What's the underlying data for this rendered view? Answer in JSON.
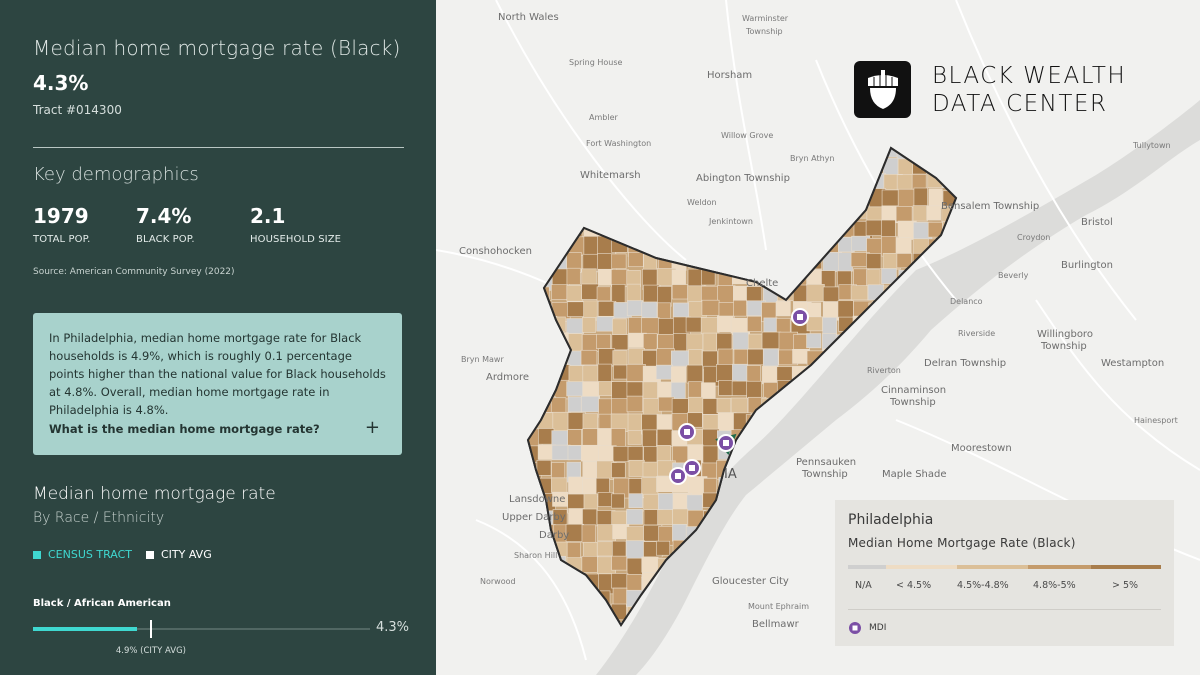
{
  "metric": {
    "title": "Median home mortgage rate (Black)",
    "value": "4.3%",
    "tract": "Tract #014300"
  },
  "demographics": {
    "heading": "Key demographics",
    "stats": [
      {
        "value": "1979",
        "label": "TOTAL POP."
      },
      {
        "value": "7.4%",
        "label": "BLACK POP."
      },
      {
        "value": "2.1",
        "label": "HOUSEHOLD SIZE"
      }
    ],
    "source": "Source: American Community Survey (2022)"
  },
  "info": {
    "text": "In Philadelphia, median home mortgage rate for Black households is 4.9%, which is roughly 0.1 percentage points higher than the national value for Black households at 4.8%. Overall, median home mortgage rate in Philadelphia is 4.8%.",
    "question": "What is the median home mortgage rate?",
    "toggle_icon": "plus-icon"
  },
  "race_chart": {
    "title": "Median home mortgage rate",
    "subtitle": "By Race / Ethnicity",
    "legend": {
      "tract": "CENSUS TRACT",
      "city": "CITY AVG"
    },
    "colors": {
      "tract": "#3fd8d0",
      "city": "#ffffff"
    },
    "groups": [
      {
        "label": "Black / African American",
        "tract_value": "4.3%",
        "city_label": "4.9% (CITY AVG)",
        "tract_fraction": 0.31,
        "city_fraction": 0.35
      }
    ]
  },
  "brand": {
    "line1": "BLACK WEALTH",
    "line2": "DATA CENTER",
    "icon": "acorn-icon"
  },
  "map": {
    "places": [
      "North Wales",
      "Warminster",
      "Township",
      "Spring House",
      "Horsham",
      "Ambler",
      "Willow Grove",
      "Fort Washington",
      "Bryn Athyn",
      "Whitemarsh",
      "Abington Township",
      "Weldon",
      "Jenkintown",
      "Tullytown",
      "Bensalem Township",
      "Bristol",
      "Conshohocken",
      "Croydon",
      "Burlington",
      "Beverly",
      "Chelte",
      "Delanco",
      "Riverside",
      "Willingboro",
      "Township",
      "Bryn Mawr",
      "Ardmore",
      "Delran Township",
      "Westampton",
      "Riverton",
      "Cinnaminson",
      "Township",
      "Hainesport",
      "Moorestown",
      "Pennsauken",
      "Township",
      "Maple Shade",
      "Lansdowne",
      "Upper Darby",
      "Darby",
      "Sharon Hill",
      "Norwood",
      "Gloucester City",
      "Mount Ephraim",
      "Bellmawr",
      "IA"
    ],
    "mdi_icon": "mdi-marker-icon"
  },
  "legend": {
    "city": "Philadelphia",
    "title": "Median Home Mortgage Rate (Black)",
    "bins": [
      "N/A",
      "< 4.5%",
      "4.5%-4.8%",
      "4.8%-5%",
      "> 5%"
    ],
    "bin_colors": [
      "#cfcfcf",
      "#eedcc4",
      "#dbbf98",
      "#c49b6c",
      "#a87d4c"
    ],
    "mdi_label": "MDI"
  }
}
